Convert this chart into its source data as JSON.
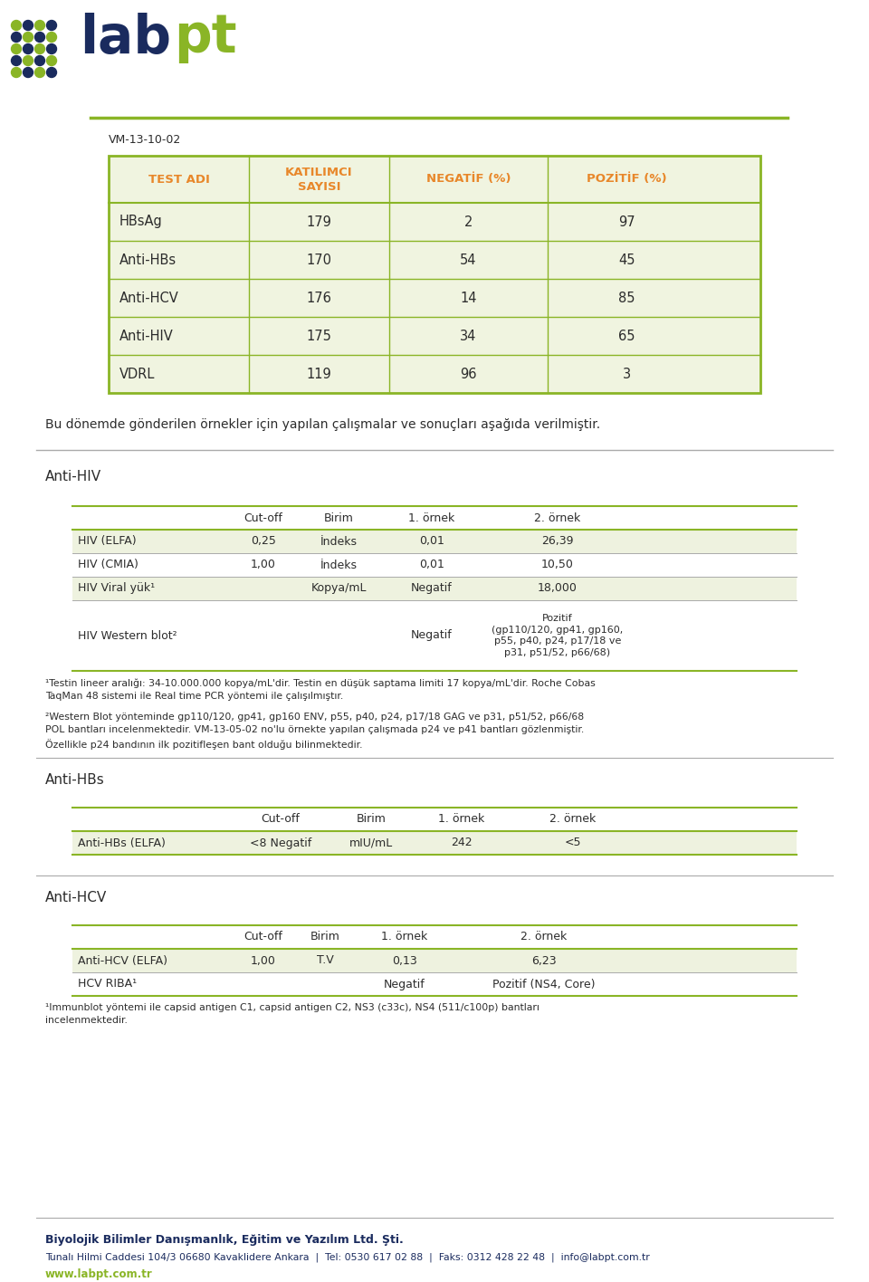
{
  "bg_color": "#ffffff",
  "logo_color_lab": "#1a2b5e",
  "logo_color_pt": "#8ab526",
  "doc_id": "VM-13-10-02",
  "main_table_header": [
    "TEST ADI",
    "KATILIMCI\nSAYISI",
    "NEGATİF (%)",
    "POZİTİF (%)"
  ],
  "main_table_header_color": "#e8872a",
  "main_table_bg": "#f0f4e0",
  "main_table_border": "#8ab526",
  "main_table_data": [
    [
      "HBsAg",
      "179",
      "2",
      "97"
    ],
    [
      "Anti-HBs",
      "170",
      "54",
      "45"
    ],
    [
      "Anti-HCV",
      "176",
      "14",
      "85"
    ],
    [
      "Anti-HIV",
      "175",
      "34",
      "65"
    ],
    [
      "VDRL",
      "119",
      "96",
      "3"
    ]
  ],
  "paragraph_text": "Bu dönemde gönderilen örnekler için yapılan çalışmalar ve sonuçları aşağıda verilmiştir.",
  "section1_title": "Anti-HIV",
  "hiv_table_cols": [
    "",
    "Cut-off",
    "Birim",
    "1. örnek",
    "2. örnek"
  ],
  "hiv_table_data": [
    [
      "HIV (ELFA)",
      "0,25",
      "İndeks",
      "0,01",
      "26,39"
    ],
    [
      "HIV (CMIA)",
      "1,00",
      "İndeks",
      "0,01",
      "10,50"
    ],
    [
      "HIV Viral yük¹",
      "",
      "Kopya/mL",
      "Negatif",
      "18,000"
    ],
    [
      "HIV Western blot²",
      "",
      "",
      "Negatif",
      "Pozitif\n(gp110/120, gp41, gp160,\np55, p40, p24, p17/18 ve\np31, p51/52, p66/68)"
    ]
  ],
  "hiv_note1": "¹Testin lineer aralığı: 34-10.000.000 kopya/mL'dir. Testin en düşük saptama limiti 17 kopya/mL'dir. Roche Cobas\nTaqMan 48 sistemi ile Real time PCR yöntemi ile çalışılmıştır.",
  "hiv_note2": "²Western Blot yönteminde gp110/120, gp41, gp160 ENV, p55, p40, p24, p17/18 GAG ve p31, p51/52, p66/68\nPOL bantları incelenmektedir. VM-13-05-02 no'lu örnekte yapılan çalışmada p24 ve p41 bantları gözlenmiştir.\nÖzellikle p24 bandının ilk pozitifleşen bant olduğu bilinmektedir.",
  "section2_title": "Anti-HBs",
  "hbs_table_cols": [
    "",
    "Cut-off",
    "Birim",
    "1. örnek",
    "2. örnek"
  ],
  "hbs_table_data": [
    [
      "Anti-HBs (ELFA)",
      "<8 Negatif",
      "mIU/mL",
      "242",
      "<5"
    ]
  ],
  "section3_title": "Anti-HCV",
  "hcv_table_cols": [
    "",
    "Cut-off",
    "Birim",
    "1. örnek",
    "2. örnek"
  ],
  "hcv_table_data": [
    [
      "Anti-HCV (ELFA)",
      "1,00",
      "T.V",
      "0,13",
      "6,23"
    ],
    [
      "HCV RIBA¹",
      "",
      "",
      "Negatif",
      "Pozitif (NS4, Core)"
    ]
  ],
  "hcv_note": "¹Immunblot yöntemi ile capsid antigen C1, capsid antigen C2, NS3 (c33c), NS4 (511/c100p) bantları\nincelenmektedir.",
  "footer_bold": "Biyolojik Bilimler Danışmanlık, Eğitim ve Yazılım Ltd. Şti.",
  "footer_line1": "Tunalı Hilmi Caddesi 104/3 06680 Kavaklidere Ankara  |  Tel: 0530 617 02 88  |  Faks: 0312 428 22 48  |  info@labpt.com.tr",
  "footer_line2": "www.labpt.com.tr",
  "footer_color": "#8ab526",
  "footer_text_color": "#1a2b5e",
  "table_green_row_bg": "#eef2df",
  "table_white_row_bg": "#ffffff",
  "green_line_color": "#8ab526",
  "gray_line_color": "#aaaaaa",
  "dark_text": "#2c2c2c",
  "orange_text": "#e8872a"
}
